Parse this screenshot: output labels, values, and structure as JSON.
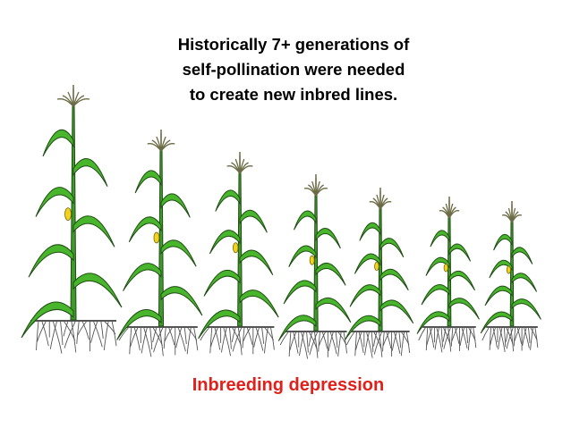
{
  "title_lines": [
    "Historically 7+ generations of",
    "self-pollination were needed",
    "to create new inbred lines."
  ],
  "caption": "Inbreeding depression"
}
